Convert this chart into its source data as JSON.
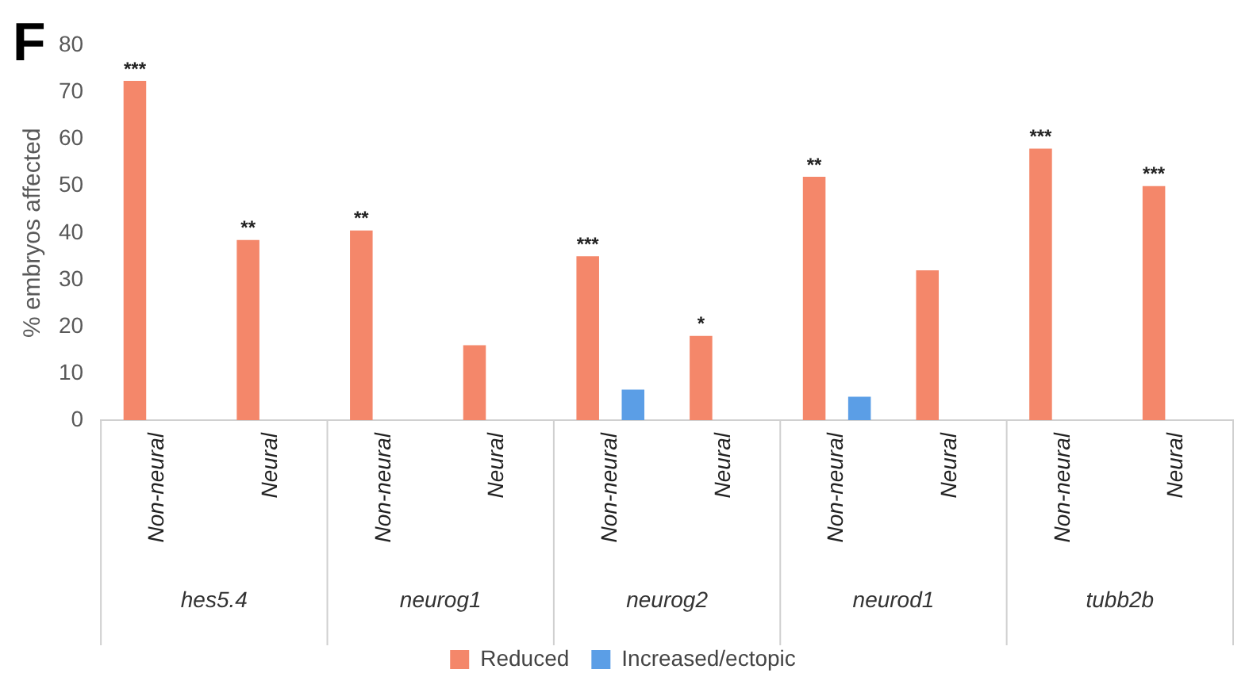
{
  "chart_data": {
    "type": "bar",
    "title": "F",
    "ylabel": "% embryos affected",
    "categories": [
      "Non-neural",
      "Neural",
      "Non-neural",
      "Neural",
      "Non-neural",
      "Neural",
      "Non-neural",
      "Neural",
      "Non-neural",
      "Neural"
    ],
    "annotations": [
      "hes5.4",
      "neurog1",
      "neurog2",
      "neurod1",
      "tubb2b"
    ],
    "series": [
      {
        "name": "Reduced",
        "color": "#f4876a",
        "values": [
          72.5,
          38.5,
          40.5,
          16,
          35,
          18,
          52,
          32,
          58,
          50
        ],
        "value_labels": [
          "***",
          "**",
          "**",
          null,
          "***",
          "*",
          "**",
          null,
          "***",
          "***"
        ]
      },
      {
        "name": "Increased/ectopic",
        "color": "#5b9ee6",
        "values": [
          null,
          null,
          null,
          null,
          6.5,
          null,
          5,
          null,
          null,
          null
        ]
      }
    ],
    "ylim": [
      0,
      80
    ],
    "yticks": [
      0,
      10,
      20,
      30,
      40,
      50,
      60,
      70,
      80
    ],
    "grid": false,
    "legend": "bottom"
  }
}
